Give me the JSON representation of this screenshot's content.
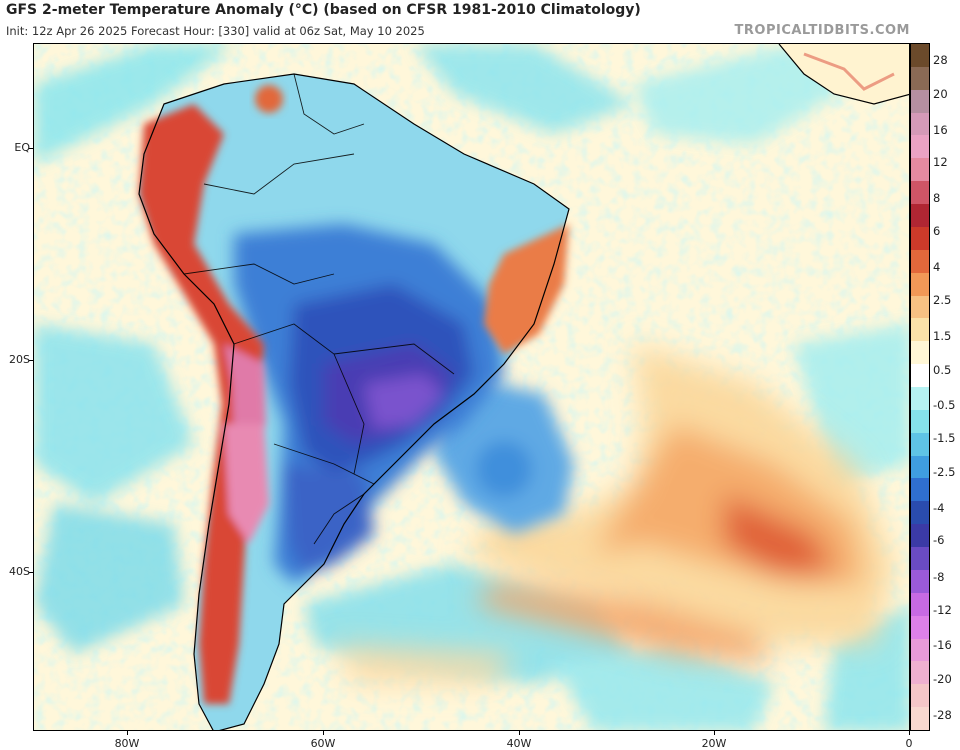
{
  "header": {
    "title": "GFS 2-meter Temperature Anomaly (°C) (based on CFSR 1981-2010 Climatology)",
    "subtitle": "Init: 12z Apr 26 2025   Forecast Hour: [330]   valid at 06z Sat, May 10 2025",
    "brand": "TROPICALTIDBITS.COM"
  },
  "axes": {
    "lat_labels": [
      "EQ",
      "20S",
      "40S"
    ],
    "lon_labels": [
      "80W",
      "60W",
      "40W",
      "20W",
      "0"
    ]
  },
  "colorbar": {
    "labels": [
      "28",
      "20",
      "16",
      "12",
      "8",
      "6",
      "4",
      "2.5",
      "1.5",
      "0.5",
      "-0.5",
      "-1.5",
      "-2.5",
      "-4",
      "-6",
      "-8",
      "-12",
      "-16",
      "-20",
      "-28"
    ],
    "colors": [
      "#6b4a2b",
      "#8a6a55",
      "#b58fa1",
      "#d59ab8",
      "#eaa2c4",
      "#e48aa0",
      "#cf5566",
      "#b02633",
      "#cc3a2a",
      "#e2683b",
      "#f19857",
      "#f7c183",
      "#fbe2a8",
      "#fff7d6",
      "#ffffff",
      "#b5f2f2",
      "#85e2ea",
      "#5fc4e6",
      "#3f9ee0",
      "#2f6fd0",
      "#2a4cae",
      "#3b3aa6",
      "#6a4bc4",
      "#9a5ad8",
      "#c76ae3",
      "#dd80e8",
      "#e89ad8",
      "#efb0d0",
      "#f5c6c8",
      "#f9d8d0"
    ]
  }
}
